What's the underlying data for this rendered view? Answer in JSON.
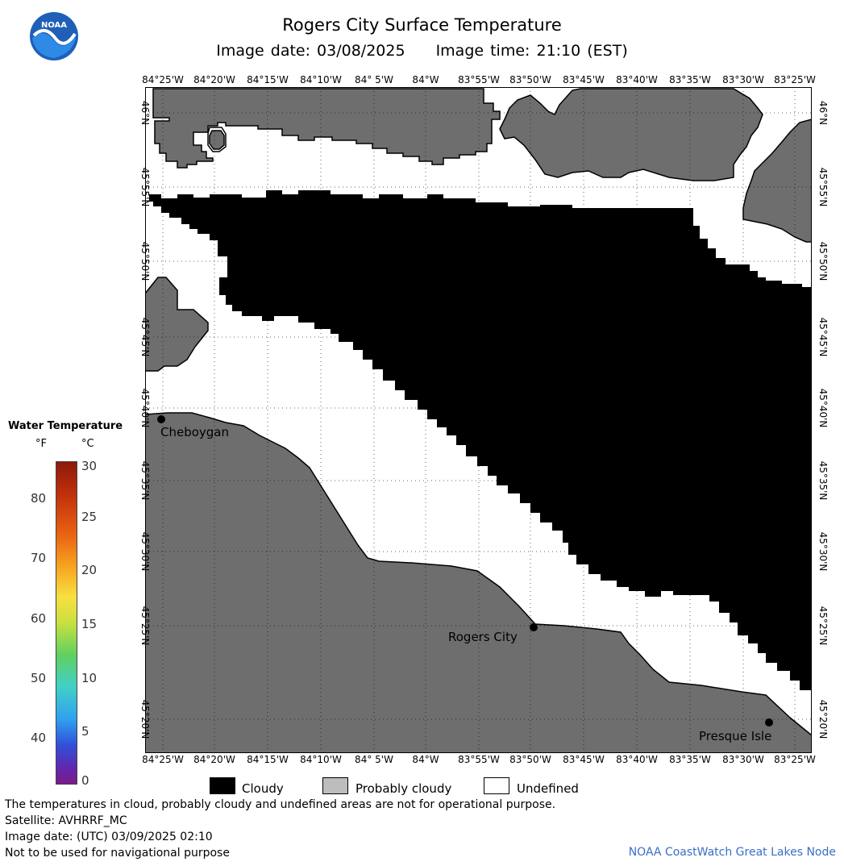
{
  "header": {
    "title": "Rogers City Surface Temperature",
    "image_date": "Image date: 03/08/2025",
    "image_time": "Image time: 21:10 (EST)"
  },
  "logo": {
    "icon": "noaa-logo",
    "text": "NOAA",
    "colors": {
      "outer": "#1f5fb8",
      "inner": "#ffffff",
      "bird": "#2e8ae6"
    }
  },
  "map": {
    "lon_labels": [
      "84°25'W",
      "84°20'W",
      "84°15'W",
      "84°10'W",
      "84° 5'W",
      "84°W",
      "83°55'W",
      "83°50'W",
      "83°45'W",
      "83°40'W",
      "83°35'W",
      "83°30'W",
      "83°25'W"
    ],
    "lat_labels": [
      "46°N",
      "45°55'N",
      "45°50'N",
      "45°45'N",
      "45°40'N",
      "45°35'N",
      "45°30'N",
      "45°25'N",
      "45°20'N"
    ],
    "colors": {
      "land": "#6e6e6e",
      "cloud": "#000000",
      "undefined": "#ffffff",
      "grid": "#000000"
    },
    "cities": [
      {
        "name": "Cheboygan",
        "label": "Cheboygan"
      },
      {
        "name": "Rogers City",
        "label": "Rogers City"
      },
      {
        "name": "Presque Isle",
        "label": "Presque Isle"
      }
    ]
  },
  "legend": {
    "title": "Water Temperature",
    "unit_f": "°F",
    "unit_c": "°C",
    "f_ticks": [
      "80",
      "70",
      "60",
      "50",
      "40"
    ],
    "c_ticks": [
      "30",
      "25",
      "20",
      "15",
      "10",
      "5",
      "0"
    ]
  },
  "key": {
    "cloudy": "Cloudy",
    "probably_cloudy": "Probably cloudy",
    "undefined": "Undefined",
    "colors": {
      "cloudy": "#000000",
      "probably_cloudy": "#bdbdbd",
      "undefined": "#ffffff"
    }
  },
  "footer": {
    "line1": "The temperatures in cloud, probably cloudy and undefined areas are not for operational purpose.",
    "line2": "Satellite: AVHRRF_MC",
    "line3": "Image date: (UTC) 03/09/2025  02:10",
    "line4": "Not to be used for navigational purpose",
    "credit": "NOAA CoastWatch Great Lakes Node"
  }
}
